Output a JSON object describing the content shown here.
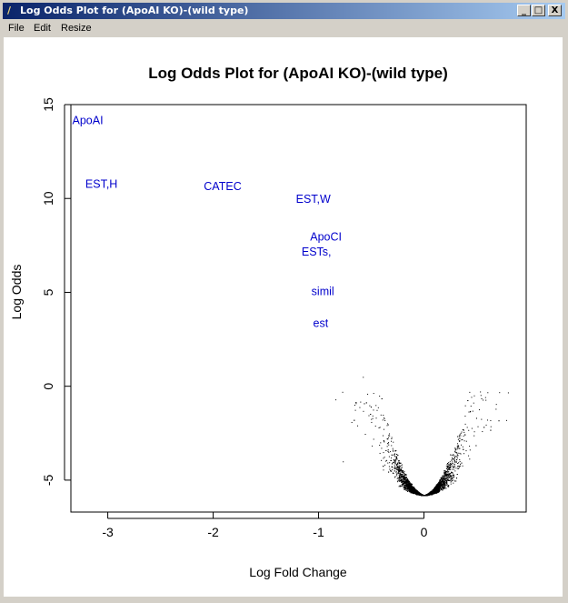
{
  "window": {
    "title": "Log Odds Plot for (ApoAI KO)-(wild type)",
    "minimize": "_",
    "maximize": "□",
    "close": "X"
  },
  "menu": [
    "File",
    "Edit",
    "Resize"
  ],
  "chart_data": {
    "type": "scatter",
    "title": "Log Odds Plot for (ApoAI KO)-(wild type)",
    "xlabel": "Log Fold Change",
    "ylabel": "Log Odds",
    "xlim": [
      -3.35,
      0.97
    ],
    "ylim": [
      -6.7,
      15
    ],
    "xticks": [
      "-3",
      "-2",
      "-1",
      "0"
    ],
    "xtick_values": [
      -3,
      -2,
      -1,
      0
    ],
    "yticks": [
      "-5",
      "0",
      "5",
      "10",
      "15"
    ],
    "ytick_values": [
      -5,
      0,
      5,
      10,
      15
    ],
    "grid": false,
    "label_color": "#0000cc",
    "point_color": "#000000",
    "labels": [
      {
        "text": "ApoAI",
        "x": -3.19,
        "y": 14.2
      },
      {
        "text": "EST,H",
        "x": -3.06,
        "y": 10.8
      },
      {
        "text": "CATEC",
        "x": -1.91,
        "y": 10.7
      },
      {
        "text": "EST,W",
        "x": -1.05,
        "y": 10.0
      },
      {
        "text": "ApoCI",
        "x": -0.93,
        "y": 8.0
      },
      {
        "text": "ESTs,",
        "x": -1.02,
        "y": 7.2
      },
      {
        "text": "simil",
        "x": -0.96,
        "y": 5.1
      },
      {
        "text": "est",
        "x": -0.98,
        "y": 3.4
      }
    ],
    "points_note_min_y": -5.8,
    "points_sample": [
      {
        "x": -0.58,
        "y": 0.5
      },
      {
        "x": -0.84,
        "y": -0.7
      },
      {
        "x": 0.43,
        "y": -0.3
      },
      {
        "x": 0.78,
        "y": -1.8
      },
      {
        "x": 0.68,
        "y": -1.2
      },
      {
        "x": -0.77,
        "y": -4.0
      }
    ]
  }
}
